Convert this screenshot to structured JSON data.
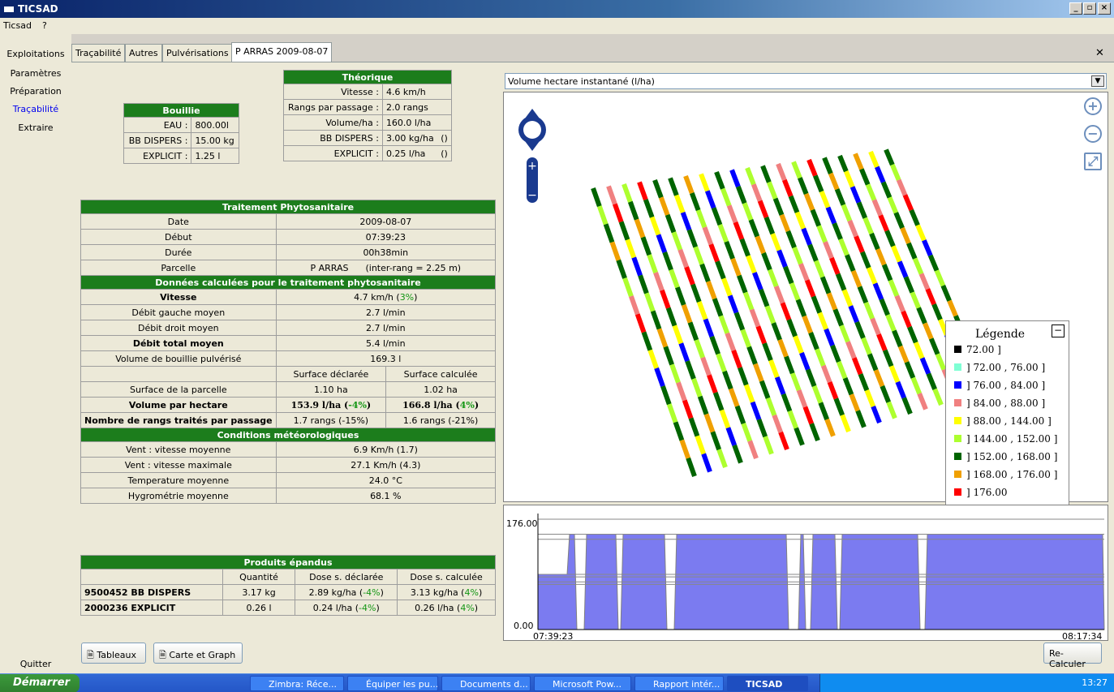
{
  "window": {
    "title": "TICSAD"
  },
  "menu": [
    "Ticsad",
    "?"
  ],
  "sidenav": {
    "items": [
      "Exploitations",
      "Paramètres",
      "Préparation",
      "Traçabilité",
      "Extraire"
    ],
    "quit": "Quitter"
  },
  "tabs": [
    "Traçabilité",
    "Autres",
    "Pulvérisations",
    "P ARRAS 2009-08-07"
  ],
  "bouillie": {
    "title": "Bouillie",
    "rows": [
      [
        "EAU :",
        "800.00l"
      ],
      [
        "BB DISPERS :",
        "15.00 kg"
      ],
      [
        "EXPLICIT :",
        "1.25 l"
      ]
    ]
  },
  "theorique": {
    "title": "Théorique",
    "rows": [
      [
        "Vitesse :",
        "4.6 km/h",
        ""
      ],
      [
        "Rangs par passage :",
        "2.0 rangs",
        ""
      ],
      [
        "Volume/ha :",
        "160.0 l/ha",
        ""
      ],
      [
        "BB DISPERS :",
        "3.00 kg/ha",
        "()"
      ],
      [
        "EXPLICIT :",
        "0.25 l/ha",
        "()"
      ]
    ]
  },
  "traitement": {
    "title": "Traitement Phytosanitaire",
    "date_label": "Date",
    "date": "2009-08-07",
    "debut_label": "Début",
    "debut": "07:39:23",
    "duree_label": "Durée",
    "duree": "00h38min",
    "parcelle_label": "Parcelle",
    "parcelle": "P ARRAS",
    "interrang": "(inter-rang = 2.25 m)"
  },
  "donnees": {
    "title": "Données calculées pour le traitement phytosanitaire",
    "vitesse_label": "Vitesse",
    "vitesse": "4.7 km/h (",
    "vitesse_pct": "3%",
    "vitesse_end": ")",
    "debit_g_label": "Débit gauche moyen",
    "debit_g": "2.7 l/min",
    "debit_d_label": "Débit droit moyen",
    "debit_d": "2.7 l/min",
    "debit_t_label": "Débit total moyen",
    "debit_t": "5.4 l/min",
    "volume_label": "Volume de bouillie pulvérisé",
    "volume": "169.3 l",
    "col_declaree": "Surface déclarée",
    "col_calculee": "Surface calculée",
    "surface_label": "Surface de la parcelle",
    "surface_decl": "1.10 ha",
    "surface_calc": "1.02 ha",
    "vph_label": "Volume par hectare",
    "vph_decl": "153.9 l/ha (",
    "vph_decl_pct": "-4%",
    "vph_calc": "166.8 l/ha (",
    "vph_calc_pct": "4%",
    "rangs_label": "Nombre de rangs traités par passage",
    "rangs_decl": "1.7 rangs (-15%)",
    "rangs_calc": "1.6 rangs (-21%)"
  },
  "meteo": {
    "title": "Conditions météorologiques",
    "rows": [
      [
        "Vent : vitesse moyenne",
        "6.9 Km/h (1.7)"
      ],
      [
        "Vent : vitesse maximale",
        "27.1 Km/h (4.3)"
      ],
      [
        "Temperature moyenne",
        "24.0 °C"
      ],
      [
        "Hygrométrie moyenne",
        "68.1 %"
      ]
    ]
  },
  "produits": {
    "title": "Produits épandus",
    "headers": [
      "Quantité",
      "Dose s. déclarée",
      "Dose s. calculée"
    ],
    "rows": [
      {
        "name": "9500452 BB DISPERS",
        "qty": "3.17 kg",
        "decl": "2.89 kg/ha (",
        "decl_pct": "-4%",
        "calc": "3.13 kg/ha (",
        "calc_pct": "4%"
      },
      {
        "name": "2000236 EXPLICIT",
        "qty": "0.26 l",
        "decl": "0.24 l/ha (",
        "decl_pct": "-4%",
        "calc": "0.26 l/ha (",
        "calc_pct": "4%"
      }
    ]
  },
  "buttons": {
    "tableaux": "Tableaux",
    "carte": "Carte et Graph",
    "recalc": "Re-Calculer"
  },
  "map": {
    "dropdown": "Volume hectare instantané (l/ha)"
  },
  "legend": {
    "title": "Légende",
    "entries": [
      {
        "label": "72.00 ]",
        "color": "#000000"
      },
      {
        "label": "] 72.00 , 76.00 ]",
        "color": "#7fffd4"
      },
      {
        "label": "] 76.00 , 84.00 ]",
        "color": "#0000ff"
      },
      {
        "label": "] 84.00 , 88.00 ]",
        "color": "#f08080"
      },
      {
        "label": "] 88.00 , 144.00 ]",
        "color": "#ffff00"
      },
      {
        "label": "] 144.00 , 152.00 ]",
        "color": "#adff2f"
      },
      {
        "label": "] 152.00 , 168.00 ]",
        "color": "#006400"
      },
      {
        "label": "] 168.00 , 176.00 ]",
        "color": "#f0a000"
      },
      {
        "label": "] 176.00",
        "color": "#ff0000"
      }
    ]
  },
  "graph": {
    "ymax": "176.00",
    "ymin": "0.00",
    "tstart": "07:39:23",
    "tend": "08:17:34"
  },
  "chart_data": {
    "type": "area",
    "x": [
      "07:39:23",
      "08:17:34"
    ],
    "ylim": [
      0,
      176
    ],
    "ylabel": "",
    "xlabel": ""
  },
  "taskbar": {
    "start": "Démarrer",
    "items": [
      "Zimbra: Réce...",
      "Équiper les pu...",
      "Documents d...",
      "Microsoft Pow...",
      "Rapport intér...",
      "TICSAD"
    ],
    "clock": "13:27"
  }
}
